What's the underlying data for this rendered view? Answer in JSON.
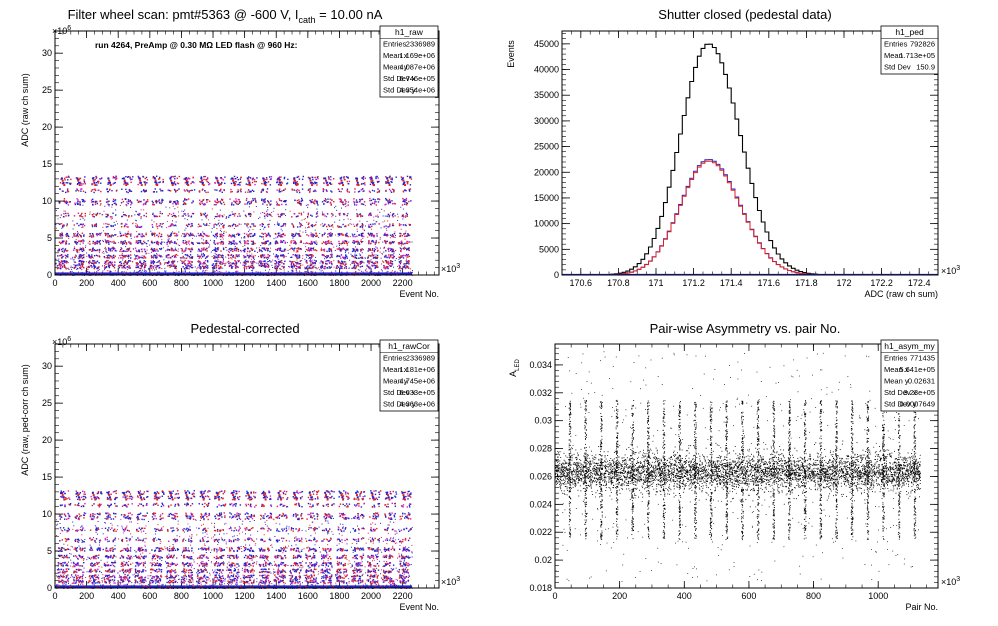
{
  "chart_data": [
    {
      "type": "scatter",
      "title": "Filter wheel scan: pmt#5363 @  -600 V, I",
      "title_sub": "cath",
      "title_tail": " = 10.00 nA",
      "annotation": "run 4264, PreAmp @ 0.30 MΩ LED flash @  960 Hz:",
      "xlabel": "Event No.",
      "ylabel": "ADC (raw ch sum)",
      "x_multiplier": "×10",
      "x_multiplier_exp": "3",
      "y_multiplier": "×10",
      "y_multiplier_exp": "6",
      "xlim": [
        0,
        2430
      ],
      "ylim": [
        0,
        33
      ],
      "xticks": [
        "0",
        "200",
        "400",
        "600",
        "800",
        "1000",
        "1200",
        "1400",
        "1600",
        "1800",
        "2000",
        "2200"
      ],
      "xtick_values": [
        0,
        200,
        400,
        600,
        800,
        1000,
        1200,
        1400,
        1600,
        1800,
        2000,
        2200
      ],
      "yticks": [
        "0",
        "5",
        "10",
        "15",
        "20",
        "25",
        "30"
      ],
      "ytick_values": [
        0,
        5,
        10,
        15,
        20,
        25,
        30
      ],
      "data_extent_x": [
        0,
        2260
      ],
      "band_levels": [
        1.2,
        1.8,
        2.6,
        3.5,
        4.5,
        5.5,
        6.8,
        8.2,
        9.8,
        10.2,
        11.5,
        12.5,
        13.2
      ],
      "n_groups": 23,
      "group_spacing": 98,
      "stats": {
        "name": "h1_raw",
        "rows": [
          [
            "Entries",
            "2336989"
          ],
          [
            "Mean x",
            "1.169e+06"
          ],
          [
            "Mean y",
            "4.087e+06"
          ],
          [
            "Std Dev x",
            "6.746e+05"
          ],
          [
            "Std Dev y",
            "4.354e+06"
          ]
        ]
      },
      "colors": {
        "primary": "#2222cc",
        "secondary": "#dd2222",
        "accent": "#cc22cc"
      }
    },
    {
      "type": "line",
      "title": "Shutter closed (pedestal data)",
      "xlabel": "ADC (raw ch sum)",
      "ylabel": "Events",
      "x_multiplier": "×10",
      "x_multiplier_exp": "3",
      "xlim": [
        170.5,
        172.5
      ],
      "ylim": [
        0,
        47500
      ],
      "xticks": [
        "170.6",
        "170.8",
        "171",
        "171.2",
        "171.4",
        "171.6",
        "171.8",
        "172",
        "172.2",
        "172.4"
      ],
      "xtick_values": [
        170.6,
        170.8,
        171.0,
        171.2,
        171.4,
        171.6,
        171.8,
        172.0,
        172.2,
        172.4
      ],
      "yticks": [
        "0",
        "5000",
        "10000",
        "15000",
        "20000",
        "25000",
        "30000",
        "35000",
        "40000",
        "45000"
      ],
      "ytick_values": [
        0,
        5000,
        10000,
        15000,
        20000,
        25000,
        30000,
        35000,
        40000,
        45000
      ],
      "series": [
        {
          "color": "#000000",
          "mean": 171.27,
          "sigma": 0.1509,
          "peak": 45000
        },
        {
          "color": "#2222cc",
          "mean": 171.27,
          "sigma": 0.1509,
          "peak": 22500
        },
        {
          "color": "#dd2222",
          "mean": 171.27,
          "sigma": 0.1509,
          "peak": 22200
        }
      ],
      "bin_width": 0.02,
      "stats": {
        "name": "h1_ped",
        "rows": [
          [
            "Entries",
            "792826"
          ],
          [
            "Mean",
            "1.713e+05"
          ],
          [
            "Std Dev",
            "150.9"
          ]
        ]
      }
    },
    {
      "type": "scatter",
      "title": "Pedestal-corrected",
      "xlabel": "Event No.",
      "ylabel": "ADC (raw, ped-corr ch sum)",
      "x_multiplier": "×10",
      "x_multiplier_exp": "3",
      "y_multiplier": "×10",
      "y_multiplier_exp": "6",
      "xlim": [
        0,
        2430
      ],
      "ylim": [
        0,
        33
      ],
      "xticks": [
        "0",
        "200",
        "400",
        "600",
        "800",
        "1000",
        "1200",
        "1400",
        "1600",
        "1800",
        "2000",
        "2200"
      ],
      "xtick_values": [
        0,
        200,
        400,
        600,
        800,
        1000,
        1200,
        1400,
        1600,
        1800,
        2000,
        2200
      ],
      "yticks": [
        "0",
        "5",
        "10",
        "15",
        "20",
        "25",
        "30"
      ],
      "ytick_values": [
        0,
        5,
        10,
        15,
        20,
        25,
        30
      ],
      "data_extent_x": [
        0,
        2260
      ],
      "band_levels": [
        1.0,
        1.6,
        2.4,
        3.3,
        4.3,
        5.3,
        6.6,
        8.0,
        9.6,
        10.0,
        11.3,
        12.3,
        13.0
      ],
      "n_groups": 23,
      "group_spacing": 98,
      "stats": {
        "name": "h1_rawCor",
        "rows": [
          [
            "Entries",
            "2336989"
          ],
          [
            "Mean x",
            "1.181e+06"
          ],
          [
            "Mean y",
            "4.745e+06"
          ],
          [
            "Std Dev x",
            "6.633e+05"
          ],
          [
            "Std Dev y",
            "4.363e+06"
          ]
        ]
      },
      "colors": {
        "primary": "#2222cc",
        "secondary": "#dd2222",
        "accent": "#cc22cc"
      }
    },
    {
      "type": "scatter",
      "title": "Pair-wise Asymmetry vs. pair No.",
      "xlabel": "Pair No.",
      "ylabel": "A",
      "ylabel_sub": "LED",
      "x_multiplier": "×10",
      "x_multiplier_exp": "3",
      "xlim": [
        0,
        1185
      ],
      "ylim": [
        0.018,
        0.0355
      ],
      "xticks": [
        "0",
        "200",
        "400",
        "600",
        "800",
        "1000"
      ],
      "xtick_values": [
        0,
        200,
        400,
        600,
        800,
        1000
      ],
      "yticks": [
        "0.018",
        "0.02",
        "0.022",
        "0.024",
        "0.026",
        "0.028",
        "0.03",
        "0.032",
        "0.034"
      ],
      "ytick_values": [
        0.018,
        0.02,
        0.022,
        0.024,
        0.026,
        0.028,
        0.03,
        0.032,
        0.034
      ],
      "data_extent_x": [
        0,
        1130
      ],
      "band_center": 0.02631,
      "band_halfwidth": 0.0012,
      "spike_spacing": 48.5,
      "spike_start": 45,
      "spike_range": [
        0.0215,
        0.0315
      ],
      "stats": {
        "name": "h1_asym_my",
        "rows": [
          [
            "Entries",
            "771435"
          ],
          [
            "Mean x",
            "5.641e+05"
          ],
          [
            "Mean y",
            "0.02631"
          ],
          [
            "Std Dev x",
            "3.23e+05"
          ],
          [
            "Std Dev y",
            "0.0007649"
          ]
        ]
      },
      "colors": {
        "primary": "#000000"
      }
    }
  ]
}
